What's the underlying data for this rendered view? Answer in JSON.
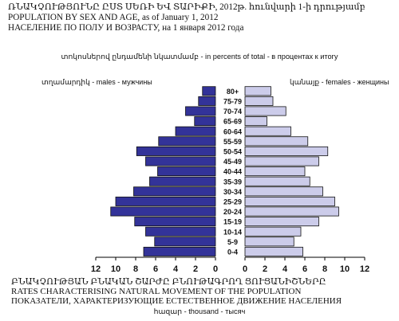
{
  "header": {
    "title_am": "ՌՆԱԿՉՈՒԹՅՈՒՆԸ ԸՍՏ ՍԵՌԻ ԵՎ ՏԱՐԻՔԻ, 2012թ. հունվարի 1-ի դրությամբ",
    "title_en": "POPULATION BY SEX AND AGE, as of January 1, 2012",
    "title_ru": "НАСЕЛЕНИЕ ПО ПОЛУ И ВОЗРАСТУ, на 1 января 2012 года",
    "unit_line": "տոկոսներով ընդամենի նկատմամբ - in percents of total - в процентах к итогу",
    "males_label": "տղամարդիկ - males - мужчины",
    "females_label": "կանայք - females - женщины"
  },
  "footer": {
    "line_am": "ԲՆԱԿՉՈՒԹՅԱՆ ԲՆԱԿԱՆ ՇԱՐԺԸ ԲՆՈՒԹԱԳՐՈՂ ՑՈՒՑԱՆԻՇՆԵՐԸ",
    "line_en": "RATES CHARACTERISING NATURAL MOVEMENT OF THE POPULATION",
    "line_ru": "ПОКАЗАТЕЛИ, ХАРАКТЕРИЗУЮЩИЕ ЕСТЕСТВЕННОЕ ДВИЖЕНИЕ НАСЕЛЕНИЯ",
    "thousand_line": "հազար - thousand - тысяч"
  },
  "chart_data": {
    "type": "bar",
    "orientation": "horizontal-pyramid",
    "categories": [
      "80+",
      "75-79",
      "70-74",
      "65-69",
      "60-64",
      "55-59",
      "50-54",
      "45-49",
      "40-44",
      "35-39",
      "30-34",
      "25-29",
      "20-24",
      "15-19",
      "10-14",
      "5-9",
      "0-4"
    ],
    "series": [
      {
        "name": "males",
        "values": [
          1.3,
          1.7,
          3.0,
          2.1,
          4.0,
          5.7,
          7.9,
          7.0,
          5.8,
          6.6,
          8.2,
          10.0,
          10.5,
          8.1,
          7.0,
          6.1,
          7.2
        ],
        "color": "#333399"
      },
      {
        "name": "females",
        "values": [
          2.6,
          2.8,
          4.1,
          2.2,
          4.6,
          6.3,
          8.3,
          7.4,
          6.0,
          6.5,
          7.8,
          9.0,
          9.4,
          7.4,
          5.6,
          4.9,
          5.8
        ],
        "color": "#ccccea"
      }
    ],
    "x_ticks": [
      "12",
      "10",
      "8",
      "6",
      "4",
      "2",
      "0",
      "0",
      "2",
      "4",
      "6",
      "8",
      "10",
      "12"
    ],
    "xlim": [
      0,
      12
    ],
    "grid": false,
    "legend": "none"
  }
}
